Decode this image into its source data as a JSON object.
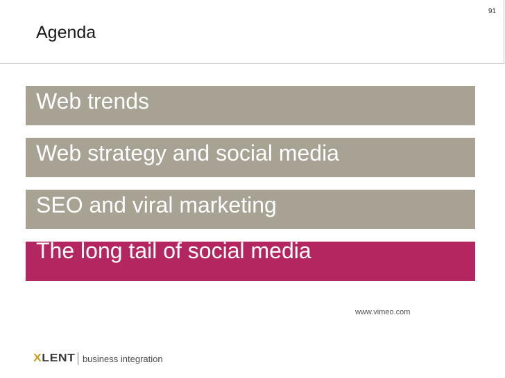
{
  "slide": {
    "page_number": "91",
    "title": "Agenda"
  },
  "agenda": {
    "items": [
      {
        "label": "Web trends"
      },
      {
        "label": "Web strategy and social media"
      },
      {
        "label": "SEO and viral marketing"
      },
      {
        "label": "The long tail of social media"
      }
    ],
    "active_index": 3
  },
  "footnote": {
    "link_text": "www.vimeo.com"
  },
  "logo": {
    "brand_x": "X",
    "brand_rest": "LENT",
    "tagline": "business integration"
  },
  "colors": {
    "item_background": "#a8a294",
    "active_item_background": "#b3265f",
    "item_text": "#ffffff",
    "logo_accent": "#c8a020"
  }
}
